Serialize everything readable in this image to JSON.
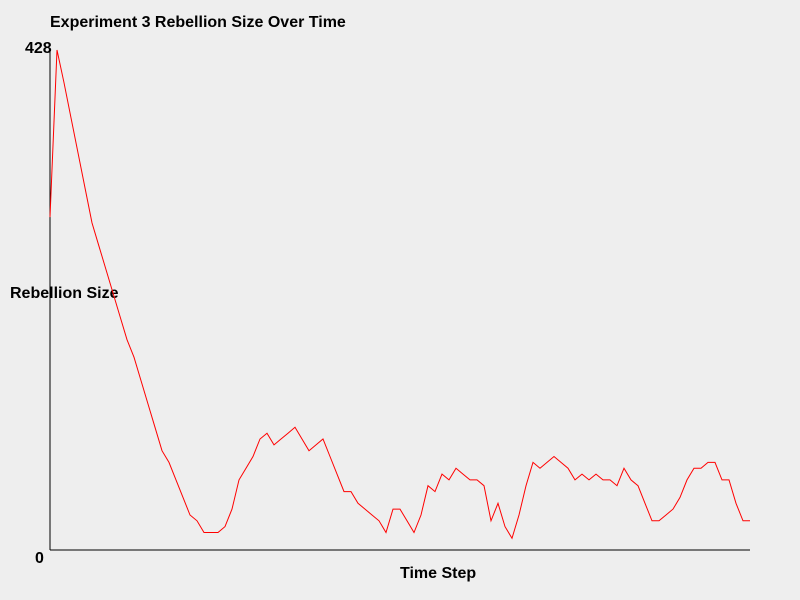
{
  "chart_data": {
    "type": "line",
    "title": "Experiment 3 Rebellion Size Over Time",
    "xlabel": "Time Step",
    "ylabel": "Rebellion Size",
    "ylim": [
      0,
      428
    ],
    "y_tick_labels": [
      "0",
      "428"
    ],
    "grid": false,
    "series": [
      {
        "color": "#ff0000",
        "x": [
          0,
          1,
          2,
          3,
          4,
          5,
          6,
          7,
          8,
          9,
          10,
          11,
          12,
          13,
          14,
          15,
          16,
          17,
          18,
          19,
          20,
          21,
          22,
          23,
          24,
          25,
          26,
          27,
          28,
          29,
          30,
          31,
          32,
          33,
          34,
          35,
          36,
          37,
          38,
          39,
          40,
          41,
          42,
          43,
          44,
          45,
          46,
          47,
          48,
          49,
          50,
          51,
          52,
          53,
          54,
          55,
          56,
          57,
          58,
          59,
          60,
          61,
          62,
          63,
          64,
          65,
          66,
          67,
          68,
          69,
          70,
          71,
          72,
          73,
          74,
          75,
          76,
          77,
          78,
          79,
          80,
          81,
          82,
          83,
          84,
          85,
          86,
          87,
          88,
          89,
          90,
          91,
          92,
          93,
          94,
          95,
          96,
          97,
          98,
          99,
          100
        ],
        "values": [
          285,
          428,
          400,
          370,
          340,
          310,
          280,
          260,
          240,
          220,
          200,
          180,
          165,
          145,
          125,
          105,
          85,
          75,
          60,
          45,
          30,
          25,
          15,
          15,
          15,
          20,
          35,
          60,
          70,
          80,
          95,
          100,
          90,
          95,
          100,
          105,
          95,
          85,
          90,
          95,
          80,
          65,
          50,
          50,
          40,
          35,
          30,
          25,
          15,
          35,
          35,
          25,
          15,
          30,
          55,
          50,
          65,
          60,
          70,
          65,
          60,
          60,
          55,
          25,
          40,
          20,
          10,
          30,
          55,
          75,
          70,
          75,
          80,
          75,
          70,
          60,
          65,
          60,
          65,
          60,
          60,
          55,
          70,
          60,
          55,
          40,
          25,
          25,
          30,
          35,
          45,
          60,
          70,
          70,
          75,
          75,
          60,
          60,
          40,
          25,
          25
        ]
      }
    ]
  }
}
